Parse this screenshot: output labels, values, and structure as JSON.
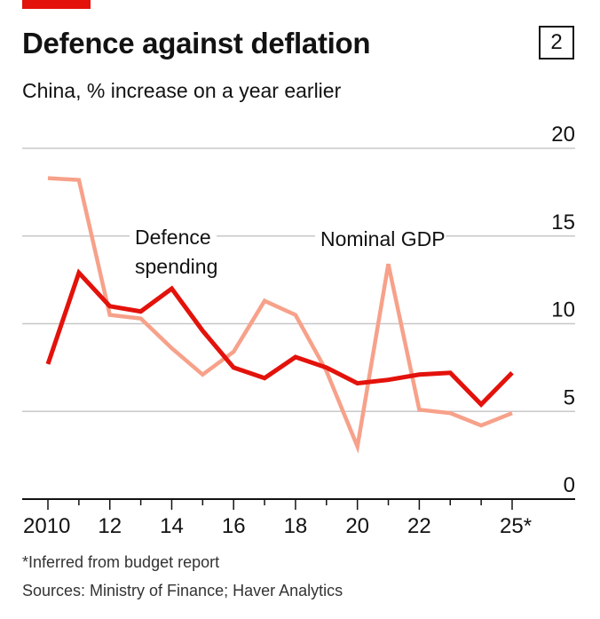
{
  "header": {
    "title": "Defence against deflation",
    "badge": "2",
    "subtitle": "China, % increase on a year earlier"
  },
  "footer": {
    "footnote": "*Inferred from budget report",
    "sources": "Sources: Ministry of Finance; Haver Analytics"
  },
  "colors": {
    "accent": "#e3120b",
    "defence": "#e3120b",
    "gdp": "#f7a18a",
    "grid": "#c8c8c8",
    "axis": "#121212"
  },
  "chart_data": {
    "type": "line",
    "title": "Defence against deflation",
    "subtitle": "China, % increase on a year earlier",
    "xlabel": "",
    "ylabel": "",
    "xlim": [
      2010,
      2025
    ],
    "ylim": [
      0,
      20
    ],
    "yticks": [
      0,
      5,
      10,
      15,
      20
    ],
    "xticks": [
      {
        "value": 2010,
        "label": "2010"
      },
      {
        "value": 2012,
        "label": "12"
      },
      {
        "value": 2014,
        "label": "14"
      },
      {
        "value": 2016,
        "label": "16"
      },
      {
        "value": 2018,
        "label": "18"
      },
      {
        "value": 2020,
        "label": "20"
      },
      {
        "value": 2022,
        "label": "22"
      },
      {
        "value": 2025,
        "label": "25*"
      }
    ],
    "grid": true,
    "y_axis_position": "right",
    "series": [
      {
        "name": "Defence spending",
        "color": "#e3120b",
        "x": [
          2010,
          2011,
          2012,
          2013,
          2014,
          2015,
          2016,
          2017,
          2018,
          2019,
          2020,
          2021,
          2022,
          2023,
          2024,
          2025
        ],
        "values": [
          7.7,
          12.9,
          11.0,
          10.7,
          12.0,
          9.6,
          7.5,
          6.9,
          8.1,
          7.5,
          6.6,
          6.8,
          7.1,
          7.2,
          5.4,
          7.2
        ]
      },
      {
        "name": "Nominal GDP",
        "color": "#f7a18a",
        "x": [
          2010,
          2011,
          2012,
          2013,
          2014,
          2015,
          2016,
          2017,
          2018,
          2019,
          2020,
          2021,
          2022,
          2023,
          2024,
          2025
        ],
        "values": [
          18.3,
          18.2,
          10.5,
          10.3,
          8.6,
          7.1,
          8.4,
          11.3,
          10.5,
          7.3,
          3.0,
          13.4,
          5.1,
          4.9,
          4.2,
          4.9
        ]
      }
    ],
    "annotations": [
      {
        "series": "Defence spending",
        "lines": [
          "Defence",
          "spending"
        ]
      },
      {
        "series": "Nominal GDP",
        "lines": [
          "Nominal GDP"
        ]
      }
    ]
  }
}
